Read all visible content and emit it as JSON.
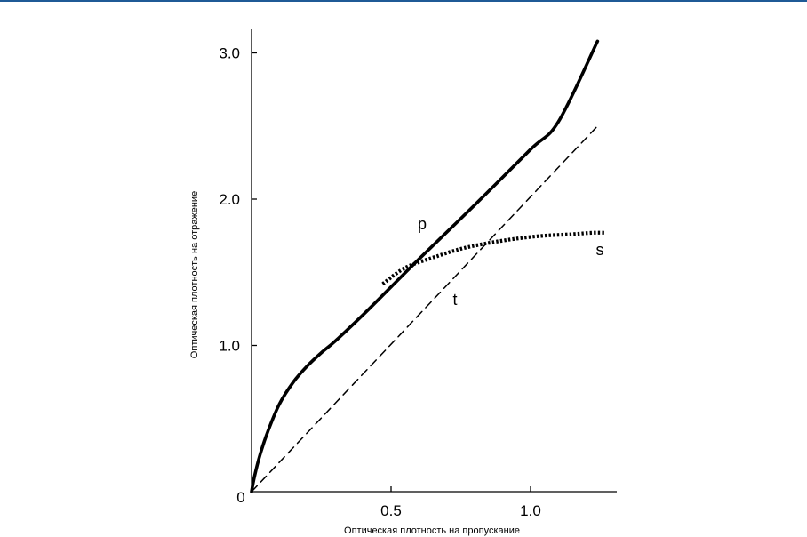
{
  "chart_data": {
    "type": "line",
    "title": "",
    "xlabel": "Оптическая плотность на пропускание",
    "ylabel": "Оптическая плотность на отражение",
    "origin_label": "0",
    "xlim": [
      0,
      1.3
    ],
    "ylim": [
      0,
      3.2
    ],
    "xticks": [
      0.5,
      1.0
    ],
    "xtick_labels": [
      "0.5",
      "1.0"
    ],
    "yticks": [
      1.0,
      2.0,
      3.0
    ],
    "ytick_labels": [
      "1.0",
      "2.0",
      "3.0"
    ],
    "grid": false,
    "series": [
      {
        "label": "p",
        "style": "solid",
        "color": "#000000",
        "x": [
          0,
          0.01,
          0.03,
          0.06,
          0.1,
          0.15,
          0.2,
          0.25,
          0.3,
          0.4,
          0.5,
          0.6,
          0.8,
          1.0,
          1.1,
          1.24
        ],
        "y": [
          0,
          0.1,
          0.25,
          0.42,
          0.6,
          0.75,
          0.86,
          0.95,
          1.03,
          1.21,
          1.4,
          1.59,
          1.96,
          2.34,
          2.53,
          3.08
        ]
      },
      {
        "label": "s",
        "style": "dotted",
        "color": "#000000",
        "x": [
          0.47,
          0.55,
          0.65,
          0.75,
          0.85,
          0.95,
          1.05,
          1.15,
          1.22,
          1.27
        ],
        "y": [
          1.42,
          1.53,
          1.6,
          1.66,
          1.7,
          1.73,
          1.75,
          1.76,
          1.77,
          1.77
        ]
      },
      {
        "label": "t",
        "style": "dashed",
        "color": "#000000",
        "x": [
          0,
          1.24
        ],
        "y": [
          0,
          2.5
        ]
      }
    ]
  }
}
